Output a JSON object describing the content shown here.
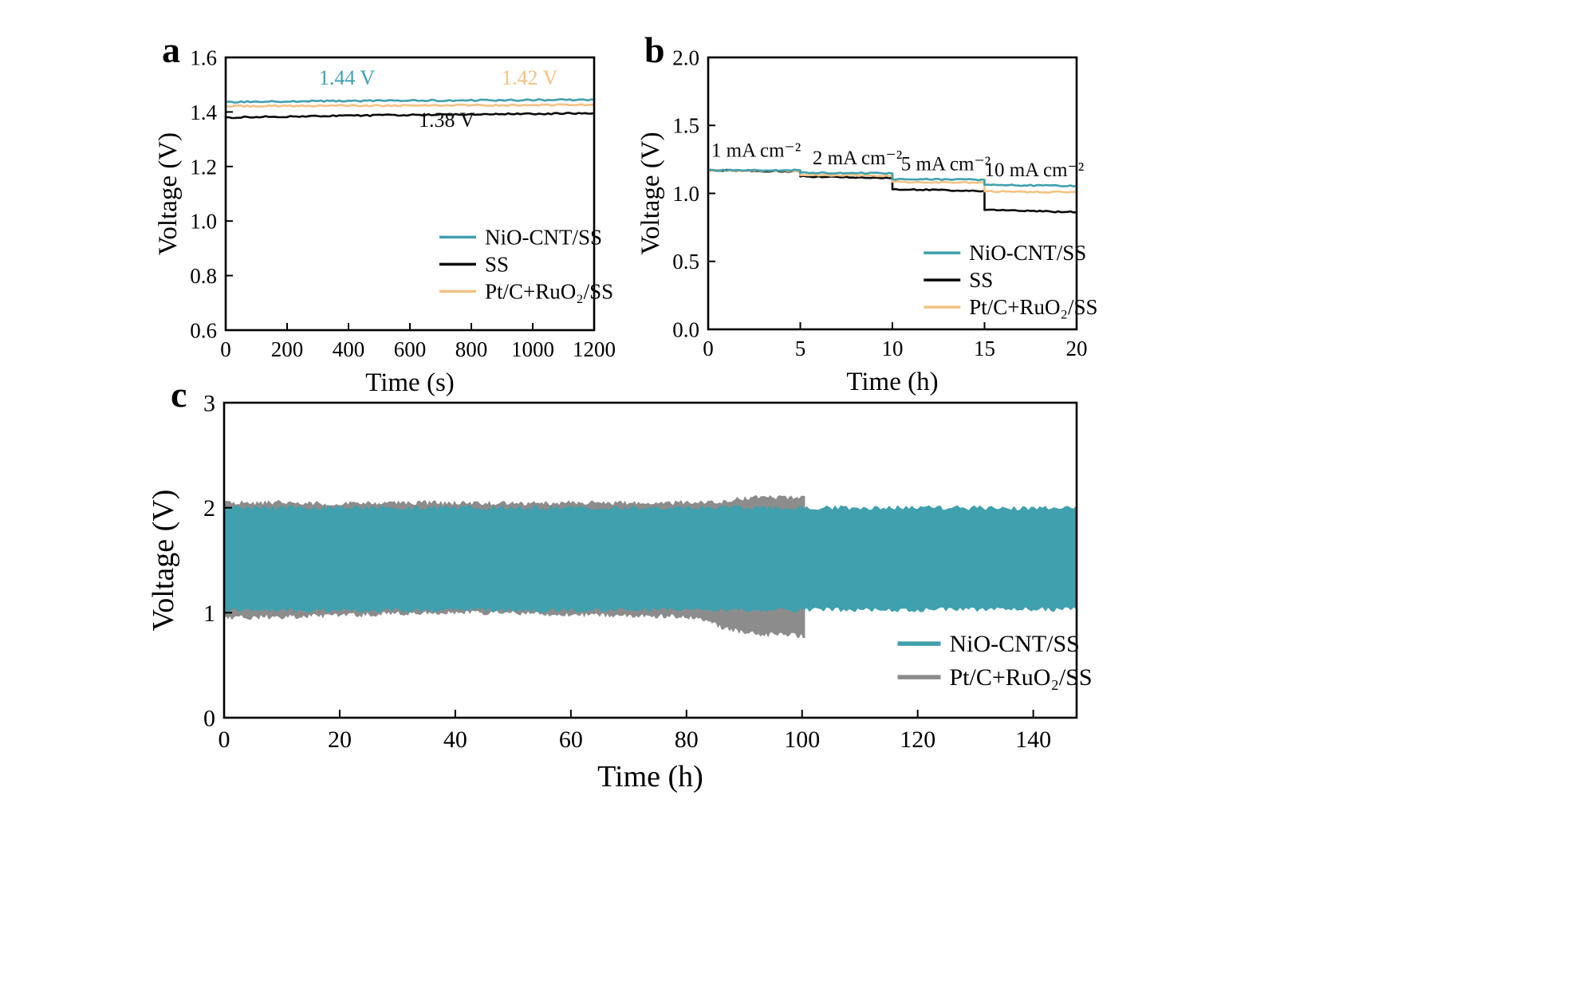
{
  "figure": {
    "background": "#ffffff",
    "panels": {
      "a": {
        "label": "a"
      },
      "b": {
        "label": "b"
      },
      "c": {
        "label": "c"
      }
    }
  },
  "colors": {
    "teal": "#3FA0AE",
    "black": "#0a0a0a",
    "orange": "#F4C183",
    "gray": "#8C8C8C"
  },
  "chart_data": [
    {
      "panel": "a",
      "type": "line",
      "title": "",
      "xlabel": "Time (s)",
      "ylabel": "Voltage (V)",
      "xlim": [
        0,
        1200
      ],
      "ylim": [
        0.6,
        1.6
      ],
      "xticks": [
        0,
        200,
        400,
        600,
        800,
        1000,
        1200
      ],
      "xtick_labels": [
        "0",
        "200",
        "400",
        "600",
        "800",
        "1000",
        "1200"
      ],
      "yticks": [
        0.6,
        0.8,
        1.0,
        1.2,
        1.4,
        1.6
      ],
      "ytick_labels": [
        "0.6",
        "0.8",
        "1.0",
        "1.2",
        "1.4",
        "1.6"
      ],
      "grid": false,
      "series": [
        {
          "name": "SS",
          "color": "black",
          "x": [
            0,
            300,
            600,
            900,
            1200
          ],
          "y": [
            1.38,
            1.385,
            1.389,
            1.392,
            1.395
          ]
        },
        {
          "name": "Pt/C+RuO₂/SS",
          "color": "orange",
          "x": [
            0,
            300,
            600,
            900,
            1200
          ],
          "y": [
            1.421,
            1.423,
            1.424,
            1.425,
            1.426
          ]
        },
        {
          "name": "NiO-CNT/SS",
          "color": "teal",
          "x": [
            0,
            300,
            600,
            900,
            1200
          ],
          "y": [
            1.436,
            1.44,
            1.442,
            1.443,
            1.445
          ]
        }
      ],
      "annotations": [
        {
          "text": "1.44 V",
          "x": 395,
          "y": 1.5,
          "color": "teal"
        },
        {
          "text": "1.42 V",
          "x": 990,
          "y": 1.5,
          "color": "orange"
        },
        {
          "text": "1.38 V",
          "x": 720,
          "y": 1.345,
          "color": "black"
        }
      ],
      "legend": {
        "position": "lower-right",
        "fx": 0.58,
        "fy": 0.685,
        "entries": [
          {
            "label": "NiO-CNT/SS",
            "color": "teal"
          },
          {
            "label": "SS",
            "color": "black"
          },
          {
            "label": "Pt/C+RuO₂/SS",
            "color": "orange"
          }
        ]
      }
    },
    {
      "panel": "b",
      "type": "line",
      "title": "",
      "xlabel": "Time (h)",
      "ylabel": "Voltage (V)",
      "xlim": [
        0,
        20
      ],
      "ylim": [
        0.0,
        2.0
      ],
      "xticks": [
        0,
        5,
        10,
        15,
        20
      ],
      "xtick_labels": [
        "0",
        "5",
        "10",
        "15",
        "20"
      ],
      "yticks": [
        0.0,
        0.5,
        1.0,
        1.5,
        2.0
      ],
      "ytick_labels": [
        "0.0",
        "0.5",
        "1.0",
        "1.5",
        "2.0"
      ],
      "grid": false,
      "series": [
        {
          "name": "SS",
          "color": "black",
          "x": [
            0,
            5,
            5,
            10,
            10,
            15,
            15,
            20
          ],
          "y": [
            1.172,
            1.16,
            1.125,
            1.112,
            1.03,
            1.018,
            0.878,
            0.862
          ]
        },
        {
          "name": "Pt/C+RuO₂/SS",
          "color": "orange",
          "x": [
            0,
            5,
            5,
            10,
            10,
            15,
            15,
            20
          ],
          "y": [
            1.168,
            1.166,
            1.135,
            1.13,
            1.085,
            1.078,
            1.015,
            1.008
          ]
        },
        {
          "name": "NiO-CNT/SS",
          "color": "teal",
          "x": [
            0,
            5,
            5,
            10,
            10,
            15,
            15,
            20
          ],
          "y": [
            1.17,
            1.17,
            1.152,
            1.148,
            1.105,
            1.1,
            1.062,
            1.055
          ]
        }
      ],
      "annotations": [
        {
          "text": "1 mA cm⁻²",
          "x": 2.6,
          "y": 1.27,
          "color": "black"
        },
        {
          "text": "2 mA cm⁻²",
          "x": 8.1,
          "y": 1.215,
          "color": "black"
        },
        {
          "text": "5 mA cm⁻²",
          "x": 12.9,
          "y": 1.17,
          "color": "black"
        },
        {
          "text": "10 mA cm⁻²",
          "x": 17.7,
          "y": 1.125,
          "color": "black"
        }
      ],
      "legend": {
        "position": "lower-right",
        "fx": 0.585,
        "fy": 0.745,
        "entries": [
          {
            "label": "NiO-CNT/SS",
            "color": "teal"
          },
          {
            "label": "SS",
            "color": "black"
          },
          {
            "label": "Pt/C+RuO₂/SS",
            "color": "orange"
          }
        ]
      }
    },
    {
      "panel": "c",
      "type": "area",
      "title": "",
      "xlabel": "Time (h)",
      "ylabel": "Voltage (V)",
      "xlim": [
        0,
        147.5
      ],
      "ylim": [
        0,
        3
      ],
      "xticks": [
        0,
        20,
        40,
        60,
        80,
        100,
        120,
        140
      ],
      "xtick_labels": [
        "0",
        "20",
        "40",
        "60",
        "80",
        "100",
        "120",
        "140"
      ],
      "yticks": [
        0,
        1,
        2,
        3
      ],
      "ytick_labels": [
        "0",
        "1",
        "2",
        "3"
      ],
      "grid": false,
      "series": [
        {
          "name": "Pt/C+RuO₂/SS",
          "color": "gray",
          "band": true,
          "x": [
            0,
            10,
            20,
            30,
            40,
            50,
            60,
            70,
            80,
            83,
            86,
            90,
            94,
            100.5
          ],
          "top": [
            2.05,
            2.05,
            2.04,
            2.05,
            2.05,
            2.04,
            2.05,
            2.05,
            2.05,
            2.05,
            2.06,
            2.09,
            2.1,
            2.09
          ],
          "bottom": [
            0.95,
            0.96,
            0.97,
            0.99,
            1.0,
            1.0,
            0.98,
            0.97,
            0.96,
            0.93,
            0.86,
            0.81,
            0.79,
            0.78
          ]
        },
        {
          "name": "NiO-CNT/SS",
          "color": "teal",
          "band": true,
          "x": [
            0,
            147.5
          ],
          "top": [
            2.0,
            2.0
          ],
          "bottom": [
            1.02,
            1.03
          ]
        }
      ],
      "annotations": [],
      "legend": {
        "position": "lower-right",
        "fx": 0.79,
        "fy": 0.79,
        "entries": [
          {
            "label": "NiO-CNT/SS",
            "color": "teal"
          },
          {
            "label": "Pt/C+RuO₂/SS",
            "color": "gray"
          }
        ]
      }
    }
  ]
}
